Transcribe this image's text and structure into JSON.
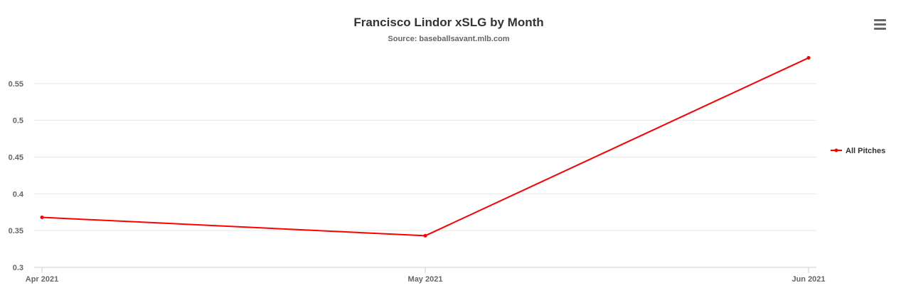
{
  "chart_data": {
    "type": "line",
    "title": "Francisco Lindor xSLG by Month",
    "subtitle": "Source: baseballsavant.mlb.com",
    "xlabel": "",
    "ylabel": "",
    "categories": [
      "Apr 2021",
      "May 2021",
      "Jun 2021"
    ],
    "series": [
      {
        "name": "All Pitches",
        "values": [
          0.368,
          0.343,
          0.585
        ],
        "color": "#ff0000"
      }
    ],
    "ylim": [
      0.3,
      0.6
    ],
    "yticks": [
      0.3,
      0.35,
      0.4,
      0.45,
      0.5,
      0.55
    ],
    "ytick_labels": [
      "0.3",
      "0.35",
      "0.4",
      "0.45",
      "0.5",
      "0.55"
    ],
    "grid": true,
    "legend_position": "right"
  },
  "menu": {
    "icon": "hamburger-menu-icon"
  }
}
